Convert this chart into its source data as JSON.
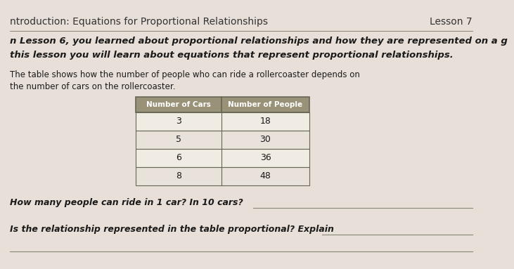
{
  "title_left": "ntroduction: Equations for Proportional Relationships",
  "title_right": "Lesson 7",
  "para1_line1": "n Lesson 6, you learned about proportional relationships and how they are represented on a g",
  "para1_line2": "this lesson you will learn about equations that represent proportional relationships.",
  "para2_line1": "The table shows how the number of people who can ride a rollercoaster depends on",
  "para2_line2": "the number of cars on the rollercoaster.",
  "table_headers": [
    "Number of Cars",
    "Number of People"
  ],
  "table_data": [
    [
      3,
      18
    ],
    [
      5,
      30
    ],
    [
      6,
      36
    ],
    [
      8,
      48
    ]
  ],
  "question1": "How many people can ride in 1 car? In 10 cars?",
  "question2": "Is the relationship represented in the table proportional? Explain",
  "bg_color": "#e8e0d8",
  "table_header_bg": "#9a9278",
  "table_row_bg": "#f0ebe3",
  "table_alt_row_bg": "#e8e2da",
  "table_border": "#666655",
  "text_color": "#1a1a1a",
  "title_color": "#333333",
  "line_color": "#888877"
}
